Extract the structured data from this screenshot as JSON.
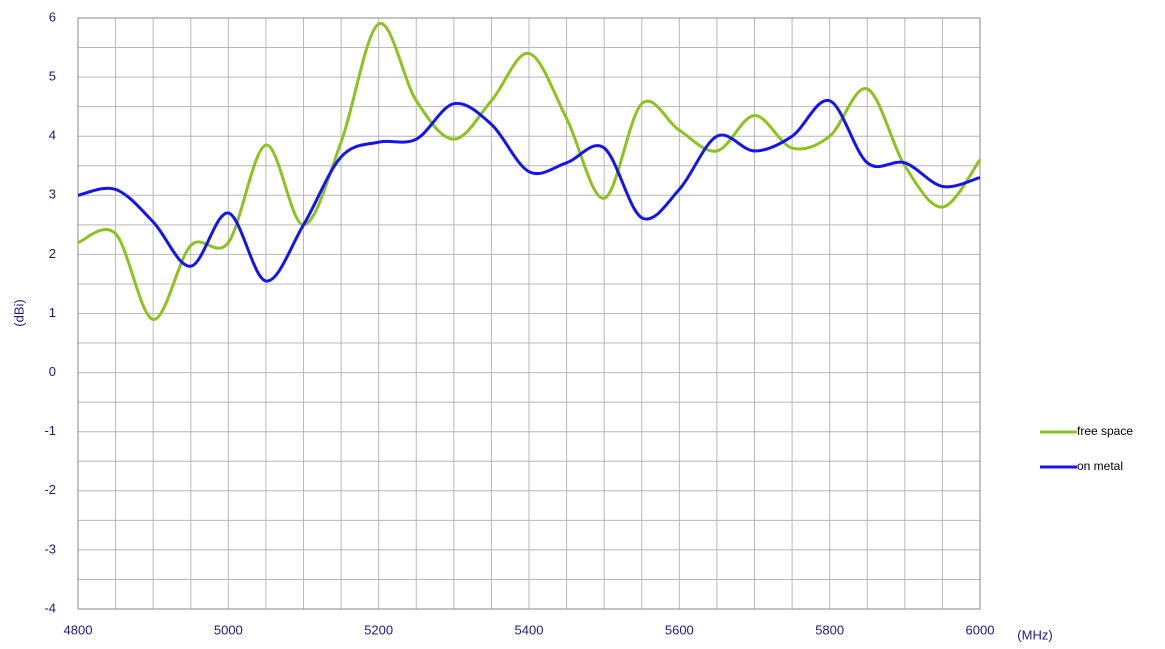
{
  "chart_data": {
    "type": "line",
    "x_label": "(MHz)",
    "y_label": "(dBi)",
    "x": [
      4800,
      4850,
      4900,
      4950,
      5000,
      5050,
      5100,
      5150,
      5200,
      5250,
      5300,
      5350,
      5400,
      5450,
      5500,
      5550,
      5600,
      5650,
      5700,
      5750,
      5800,
      5850,
      5900,
      5950,
      6000
    ],
    "series": [
      {
        "name": "free space",
        "color": "#8dc21f",
        "values": [
          2.2,
          2.35,
          0.9,
          2.15,
          2.2,
          3.85,
          2.5,
          3.9,
          5.9,
          4.6,
          3.95,
          4.6,
          5.4,
          4.3,
          2.95,
          4.55,
          4.1,
          3.75,
          4.35,
          3.8,
          4.0,
          4.8,
          3.5,
          2.8,
          3.6
        ]
      },
      {
        "name": "on metal",
        "color": "#1414f0",
        "values": [
          3.0,
          3.1,
          2.55,
          1.8,
          2.7,
          1.55,
          2.5,
          3.65,
          3.9,
          3.95,
          4.55,
          4.2,
          3.4,
          3.55,
          3.8,
          2.62,
          3.1,
          4.0,
          3.75,
          4.0,
          4.6,
          3.55,
          3.55,
          3.15,
          3.3
        ]
      }
    ],
    "xlim": [
      4800,
      6000
    ],
    "xticks": [
      4800,
      5000,
      5200,
      5400,
      5600,
      5800,
      6000
    ],
    "x_grid": [
      4850,
      4900,
      4950,
      5050,
      5100,
      5150,
      5250,
      5300,
      5350,
      5450,
      5500,
      5550,
      5650,
      5700,
      5750,
      5850,
      5900,
      5950
    ],
    "ylim": [
      -4,
      6
    ],
    "yticks": [
      -4,
      -3,
      -2,
      -1,
      0,
      1,
      2,
      3,
      4,
      5,
      6
    ],
    "y_grid": [
      -3.5,
      -2.5,
      -1.5,
      -0.5,
      0.5,
      1.5,
      2.5,
      3.5,
      4.5,
      5.5
    ],
    "grid": true,
    "legend": "right"
  }
}
